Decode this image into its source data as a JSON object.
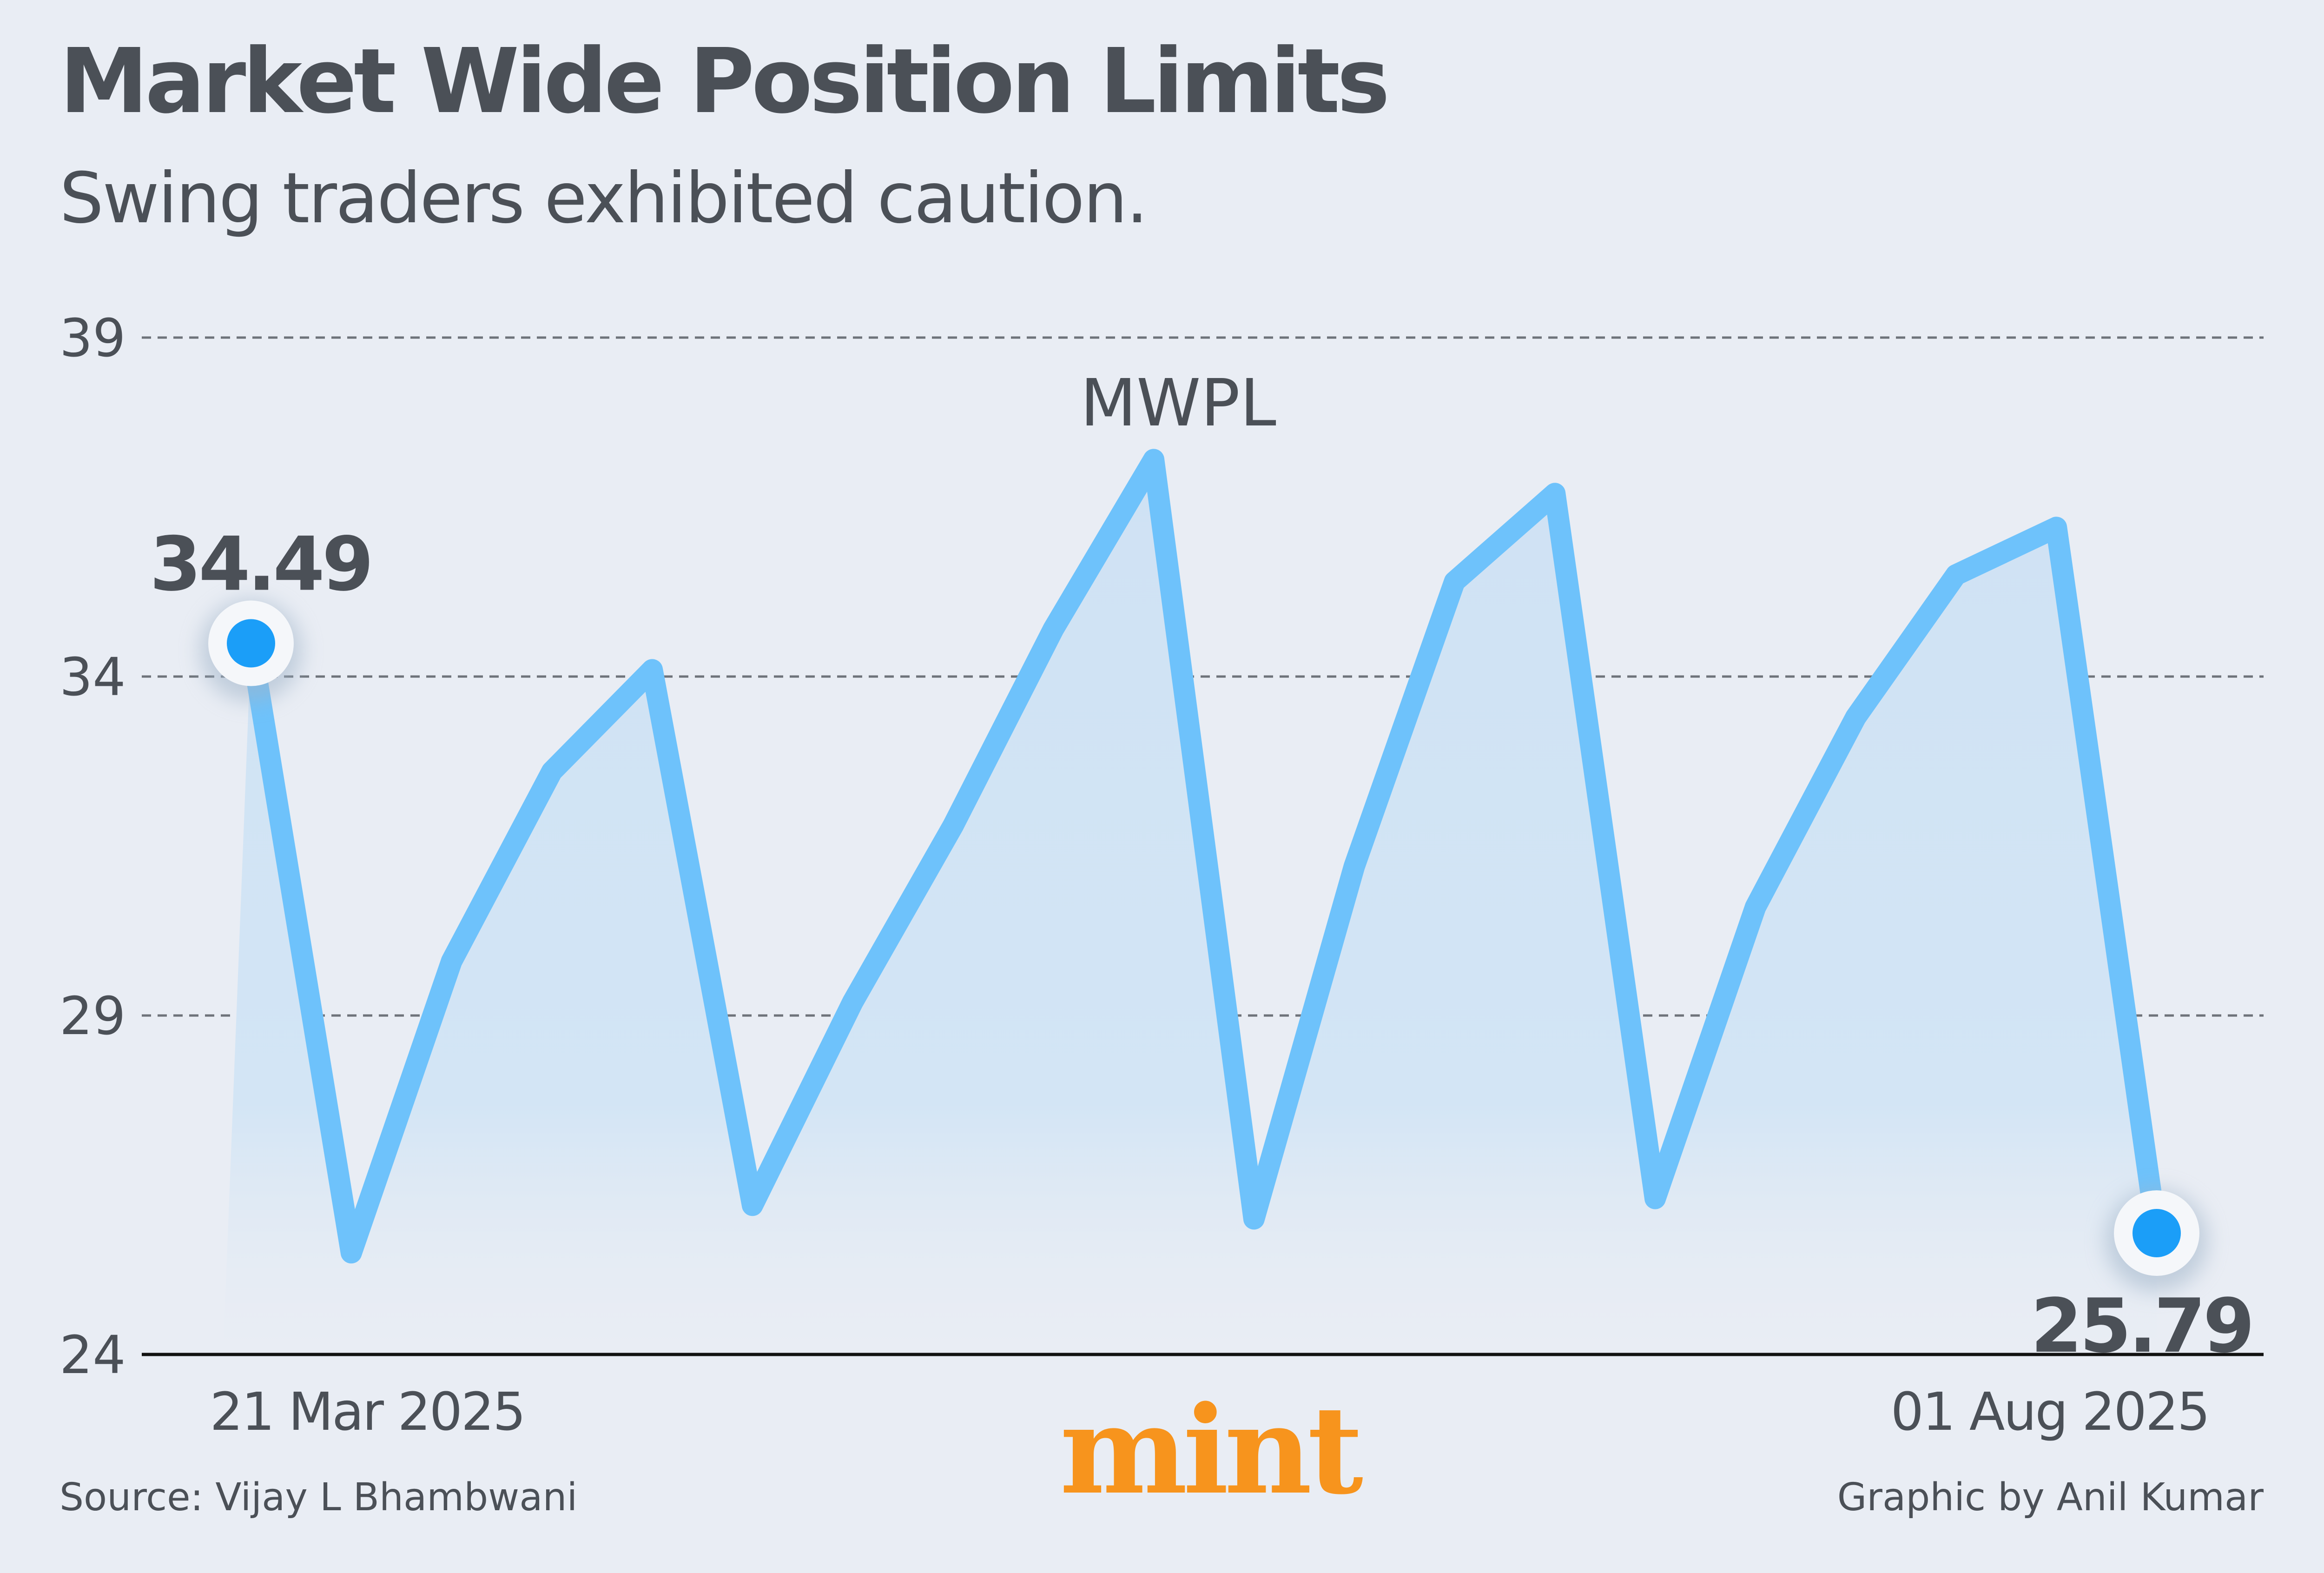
{
  "title": "Market Wide Position Limits",
  "subtitle": "Swing traders exhibited caution.",
  "footer": {
    "source": "Source: Vijay L Bhambwani",
    "credit": "Graphic by Anil Kumar"
  },
  "brand": {
    "logo_text": "mint",
    "logo_color": "#f7941d"
  },
  "colors": {
    "background": "#e9edf4",
    "line": "#6ec2fb",
    "area": "#d3e5f5",
    "marker": "#1b9ef8",
    "text": "#4b5057"
  },
  "chart_data": {
    "type": "area",
    "series": [
      {
        "name": "MWPL",
        "values": [
          34.49,
          25.5,
          29.8,
          32.6,
          34.1,
          26.2,
          29.2,
          31.8,
          34.7,
          37.2,
          26.0,
          31.2,
          35.4,
          36.7,
          26.3,
          30.6,
          33.4,
          35.5,
          36.2,
          25.79
        ]
      }
    ],
    "x_labels": {
      "first": "21 Mar 2025",
      "last": "01 Aug 2025"
    },
    "yticks": [
      24,
      29,
      34,
      39
    ],
    "ylim": [
      24,
      39
    ],
    "grid": true,
    "annotations": {
      "start_value": "34.49",
      "end_value": "25.79",
      "series_label": "MWPL"
    }
  }
}
